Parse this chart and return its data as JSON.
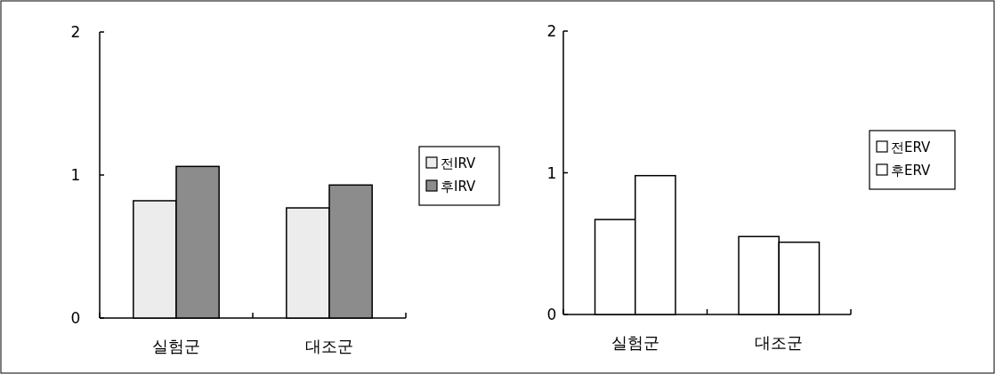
{
  "chart_data": [
    {
      "type": "bar",
      "categories": [
        "실험군",
        "대조군"
      ],
      "ylim": [
        0,
        2
      ],
      "yticks": [
        0,
        1,
        2
      ],
      "legend": "right",
      "series": [
        {
          "name": "전IRV",
          "color": "#ececec",
          "values": [
            0.82,
            0.77
          ]
        },
        {
          "name": "후IRV",
          "color": "#8c8c8c",
          "values": [
            1.06,
            0.93
          ]
        }
      ]
    },
    {
      "type": "bar",
      "categories": [
        "실험군",
        "대조군"
      ],
      "ylim": [
        0,
        2
      ],
      "yticks": [
        0,
        1,
        2
      ],
      "legend": "right",
      "series": [
        {
          "name": "전ERV",
          "color": "#ffffff",
          "values": [
            0.67,
            0.55
          ]
        },
        {
          "name": "후ERV",
          "color": "#ffffff",
          "values": [
            0.98,
            0.51
          ]
        }
      ]
    }
  ]
}
